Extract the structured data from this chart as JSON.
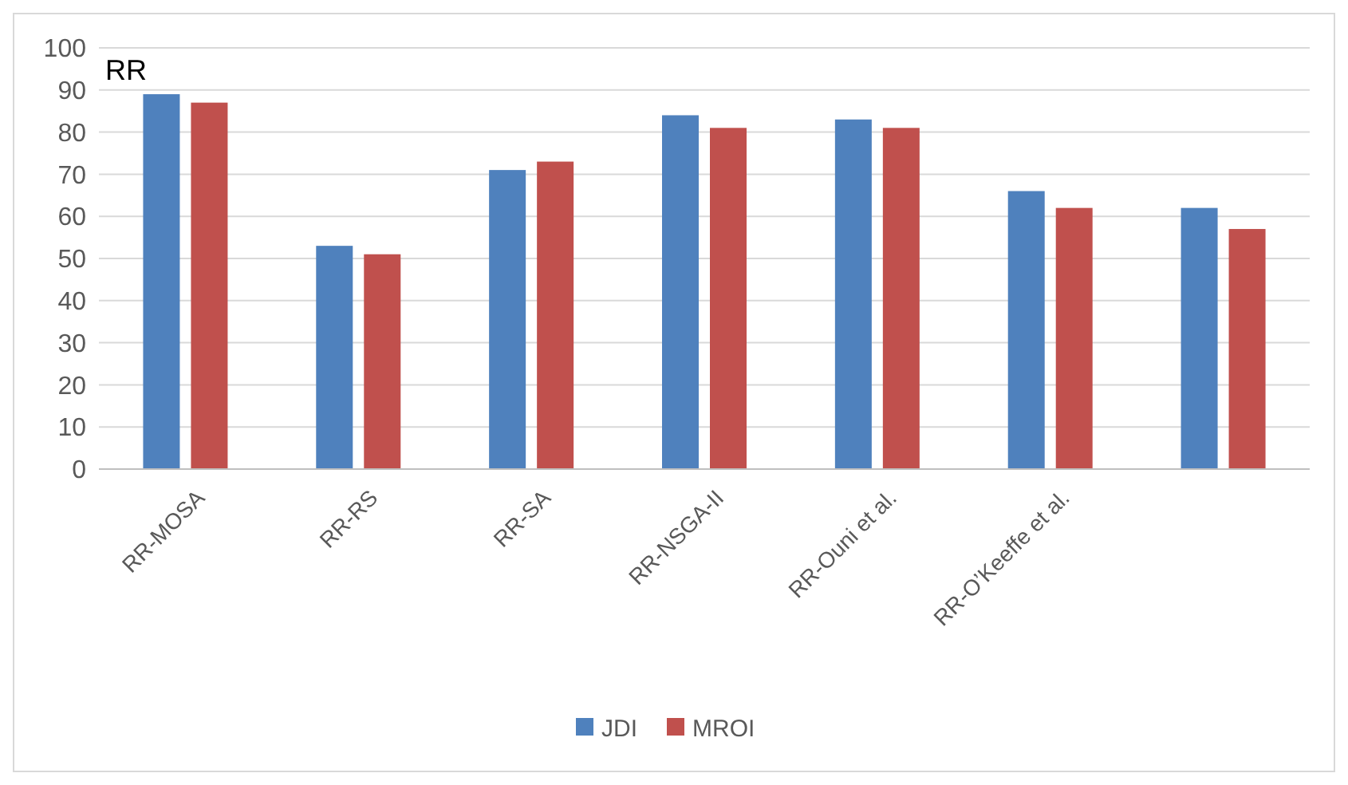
{
  "chart_data": {
    "type": "bar",
    "ylabel": "RR",
    "categories": [
      "RR-MOSA",
      "RR-RS",
      "RR-SA",
      "RR-NSGA-II",
      "RR-Ouni et al.",
      "RR-O’Keeffe et al.",
      null
    ],
    "series": [
      {
        "name": "JDI",
        "color": "#4f81bd",
        "values": [
          89,
          53,
          71,
          84,
          83,
          66,
          62
        ]
      },
      {
        "name": "MROI",
        "color": "#c0504d",
        "values": [
          87,
          51,
          73,
          81,
          81,
          62,
          57
        ]
      }
    ],
    "ylim": [
      0,
      100
    ],
    "yticks": [
      0,
      10,
      20,
      30,
      40,
      50,
      60,
      70,
      80,
      90,
      100
    ],
    "grid": "y",
    "legend": "bottom"
  }
}
